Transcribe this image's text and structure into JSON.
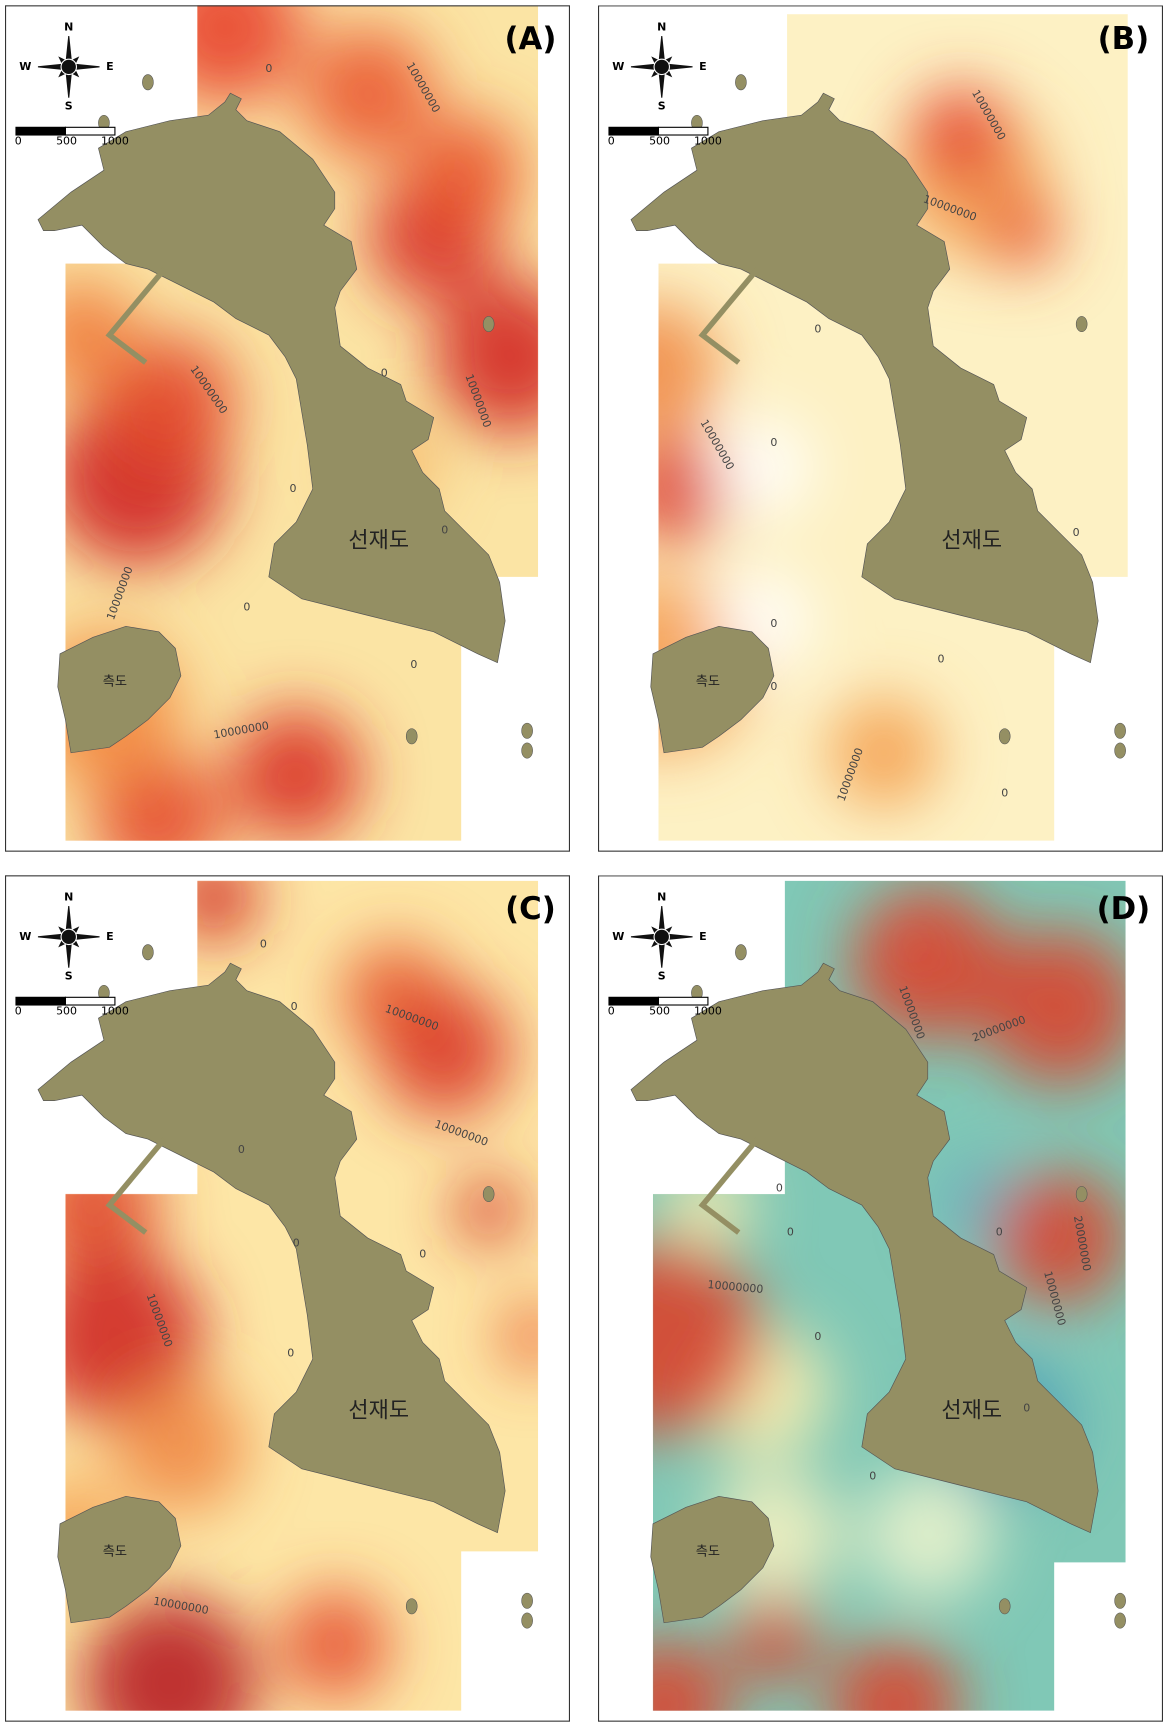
{
  "panels": [
    {
      "label": "(A)",
      "compass": {
        "n": "N",
        "s": "S",
        "e": "E",
        "w": "W"
      },
      "scale_labels": [
        "0",
        "500",
        "1000"
      ],
      "islands": [
        "선재도",
        "측도"
      ],
      "contour_labels": [
        "10000000",
        "10000000",
        "10000000",
        "10000000",
        "10000000",
        "0",
        "0",
        "0",
        "0",
        "0",
        "0"
      ]
    },
    {
      "label": "(B)",
      "compass": {
        "n": "N",
        "s": "S",
        "e": "E",
        "w": "W"
      },
      "scale_labels": [
        "0",
        "500",
        "1000"
      ],
      "islands": [
        "선재도",
        "측도"
      ],
      "contour_labels": [
        "10000000",
        "10000000",
        "10000000",
        "10000000",
        "0",
        "0",
        "0",
        "0",
        "0",
        "0",
        "0"
      ]
    },
    {
      "label": "(C)",
      "compass": {
        "n": "N",
        "s": "S",
        "e": "E",
        "w": "W"
      },
      "scale_labels": [
        "0",
        "500",
        "1000"
      ],
      "islands": [
        "선재도",
        "측도"
      ],
      "contour_labels": [
        "10000000",
        "10000000",
        "10000000",
        "10000000",
        "0",
        "0",
        "0",
        "0",
        "0",
        "0"
      ]
    },
    {
      "label": "(D)",
      "compass": {
        "n": "N",
        "s": "S",
        "e": "E",
        "w": "W"
      },
      "scale_labels": [
        "0",
        "500",
        "1000"
      ],
      "islands": [
        "선재도",
        "측도"
      ],
      "contour_labels": [
        "10000000",
        "20000000",
        "20000000",
        "10000000",
        "10000000",
        "0",
        "0",
        "0",
        "0",
        "0",
        "0"
      ]
    }
  ]
}
